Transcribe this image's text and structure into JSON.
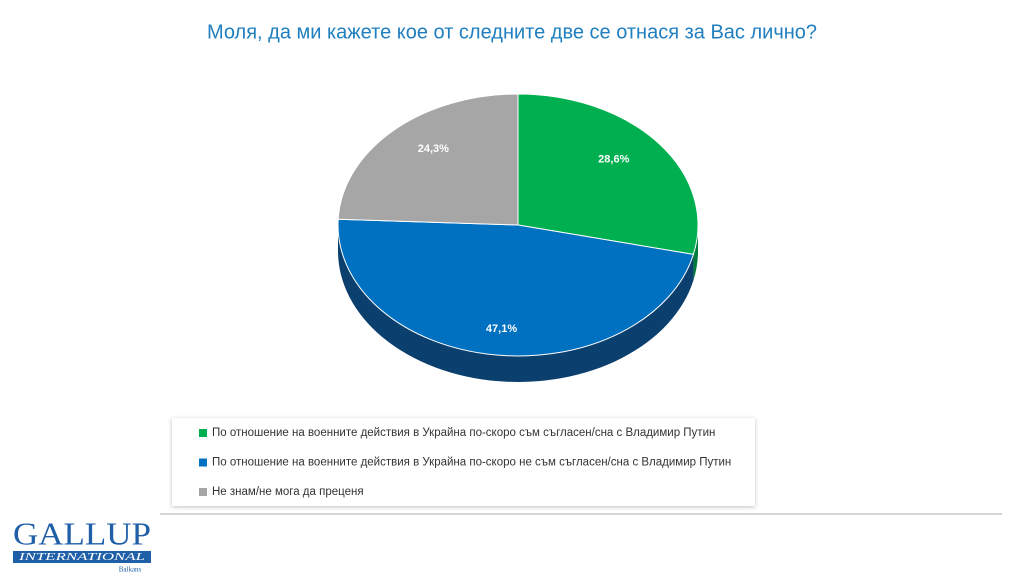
{
  "chart_data": {
    "type": "pie",
    "title": "Моля, да ми кажете кое от следните две се отнася за Вас лично?",
    "categories": [
      "По отношение на военните действия в Украйна по-скоро съм съгласен/сна с Владимир Путин",
      "По отношение на военните действия в Украйна по-скоро не съм съгласен/сна с Владимир Путин",
      "Не знам/не мога да преценя"
    ],
    "values": [
      28.6,
      47.1,
      24.3
    ],
    "value_labels": [
      "28,6%",
      "47,1%",
      "24,3%"
    ],
    "colors": [
      "#00b050",
      "#0070c0",
      "#a6a6a6"
    ],
    "side_colors": [
      "#007a3a",
      "#0b3f6e",
      "#6e6e6e"
    ],
    "legend": "bottom"
  },
  "logo": {
    "name": "GALLUP",
    "subtitle": "INTERNATIONAL",
    "region": "Balkans"
  }
}
